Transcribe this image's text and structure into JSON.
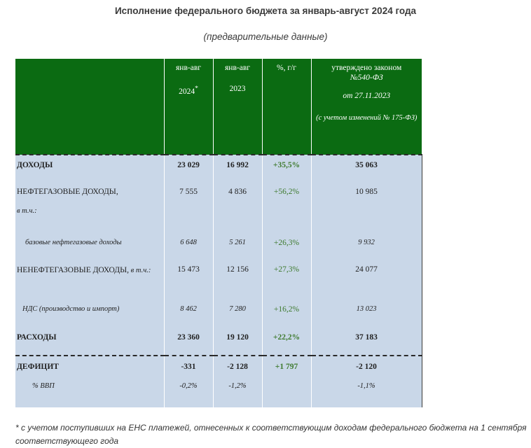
{
  "title": "Исполнение федерального бюджета за январь-август 2024 года",
  "subtitle": "(предварительные данные)",
  "table": {
    "headers": {
      "col1_line1": "янв-авг",
      "col1_line2": "2024",
      "col1_mark": "*",
      "col2_line1": "янв-авг",
      "col2_line2": "2023",
      "col3": "%, г/г",
      "col4_line1": "утверждено законом",
      "col4_line2": "№540-ФЗ",
      "col4_line3": "от 27.11.2023",
      "col4_line4": "(с учетом изменений № 175-ФЗ)"
    },
    "rows": [
      {
        "label": "ДОХОДЫ",
        "v2024": "23 029",
        "v2023": "16 992",
        "pct": "+35,5%",
        "law": "35 063"
      },
      {
        "label": "НЕФТЕГАЗОВЫЕ ДОХОДЫ,",
        "sublabel": "в т.ч.:",
        "v2024": "7 555",
        "v2023": "4 836",
        "pct": "+56,2%",
        "law": "10 985"
      },
      {
        "label": "базовые нефтегазовые доходы",
        "v2024": "6 648",
        "v2023": "5 261",
        "pct": "+26,3%",
        "law": "9 932"
      },
      {
        "label": "НЕНЕФТЕГАЗОВЫЕ ДОХОДЫ,",
        "label_small": " в т.ч.:",
        "v2024": "15 473",
        "v2023": "12 156",
        "pct": "+27,3%",
        "law": "24 077"
      },
      {
        "label": "НДС (производство и импорт)",
        "v2024": "8 462",
        "v2023": "7 280",
        "pct": "+16,2%",
        "law": "13 023"
      },
      {
        "label": "РАСХОДЫ",
        "v2024": "23 360",
        "v2023": "19 120",
        "pct": "+22,2%",
        "law": "37 183"
      },
      {
        "label": "ДЕФИЦИТ",
        "v2024": "-331",
        "v2023": "-2 128",
        "pct": "+1 797",
        "law": "-2 120"
      },
      {
        "label": "% ВВП",
        "v2024": "-0,2%",
        "v2023": "-1,2%",
        "pct": "",
        "law": "-1,1%"
      }
    ]
  },
  "footnote": "* с учетом поступивших на ЕНС платежей, отнесенных к соответствующим доходам федерального бюджета на 1 сентября соответствующего года",
  "colors": {
    "header_bg": "#0b6b12",
    "row_bg": "#c9d7e8",
    "pct_text": "#3e7a2e"
  }
}
